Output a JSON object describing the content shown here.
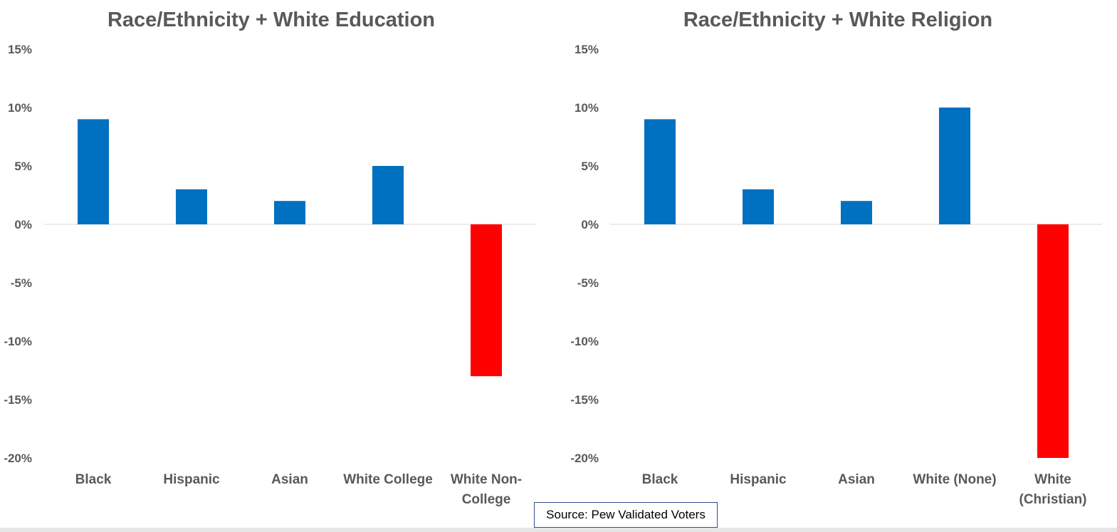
{
  "colors": {
    "positive": "#0070C0",
    "negative": "#FF0000",
    "text": "#595959",
    "zero_line": "#D9D9D9"
  },
  "source_note": "Source: Pew Validated Voters",
  "chart_data": [
    {
      "type": "bar",
      "title": "Race/Ethnicity + White Education",
      "categories": [
        "Black",
        "Hispanic",
        "Asian",
        "White College",
        "White Non-College"
      ],
      "category_lines": [
        [
          "Black"
        ],
        [
          "Hispanic"
        ],
        [
          "Asian"
        ],
        [
          "White College"
        ],
        [
          "White Non-",
          "College"
        ]
      ],
      "values": [
        9,
        3,
        2,
        5,
        -13
      ],
      "value_unit": "%",
      "ylim": [
        -20,
        15
      ],
      "yticks": [
        15,
        10,
        5,
        0,
        -5,
        -10,
        -15,
        -20
      ],
      "ytick_labels": [
        "15%",
        "10%",
        "5%",
        "0%",
        "-5%",
        "-10%",
        "-15%",
        "-20%"
      ],
      "xlabel": "",
      "ylabel": "",
      "grid": false
    },
    {
      "type": "bar",
      "title": "Race/Ethnicity + White Religion",
      "categories": [
        "Black",
        "Hispanic",
        "Asian",
        "White (None)",
        "White (Christian)"
      ],
      "category_lines": [
        [
          "Black"
        ],
        [
          "Hispanic"
        ],
        [
          "Asian"
        ],
        [
          "White (None)"
        ],
        [
          "White",
          "(Christian)"
        ]
      ],
      "values": [
        9,
        3,
        2,
        10,
        -20
      ],
      "value_unit": "%",
      "ylim": [
        -20,
        15
      ],
      "yticks": [
        15,
        10,
        5,
        0,
        -5,
        -10,
        -15,
        -20
      ],
      "ytick_labels": [
        "15%",
        "10%",
        "5%",
        "0%",
        "-5%",
        "-10%",
        "-15%",
        "-20%"
      ],
      "xlabel": "",
      "ylabel": "",
      "grid": false
    }
  ]
}
